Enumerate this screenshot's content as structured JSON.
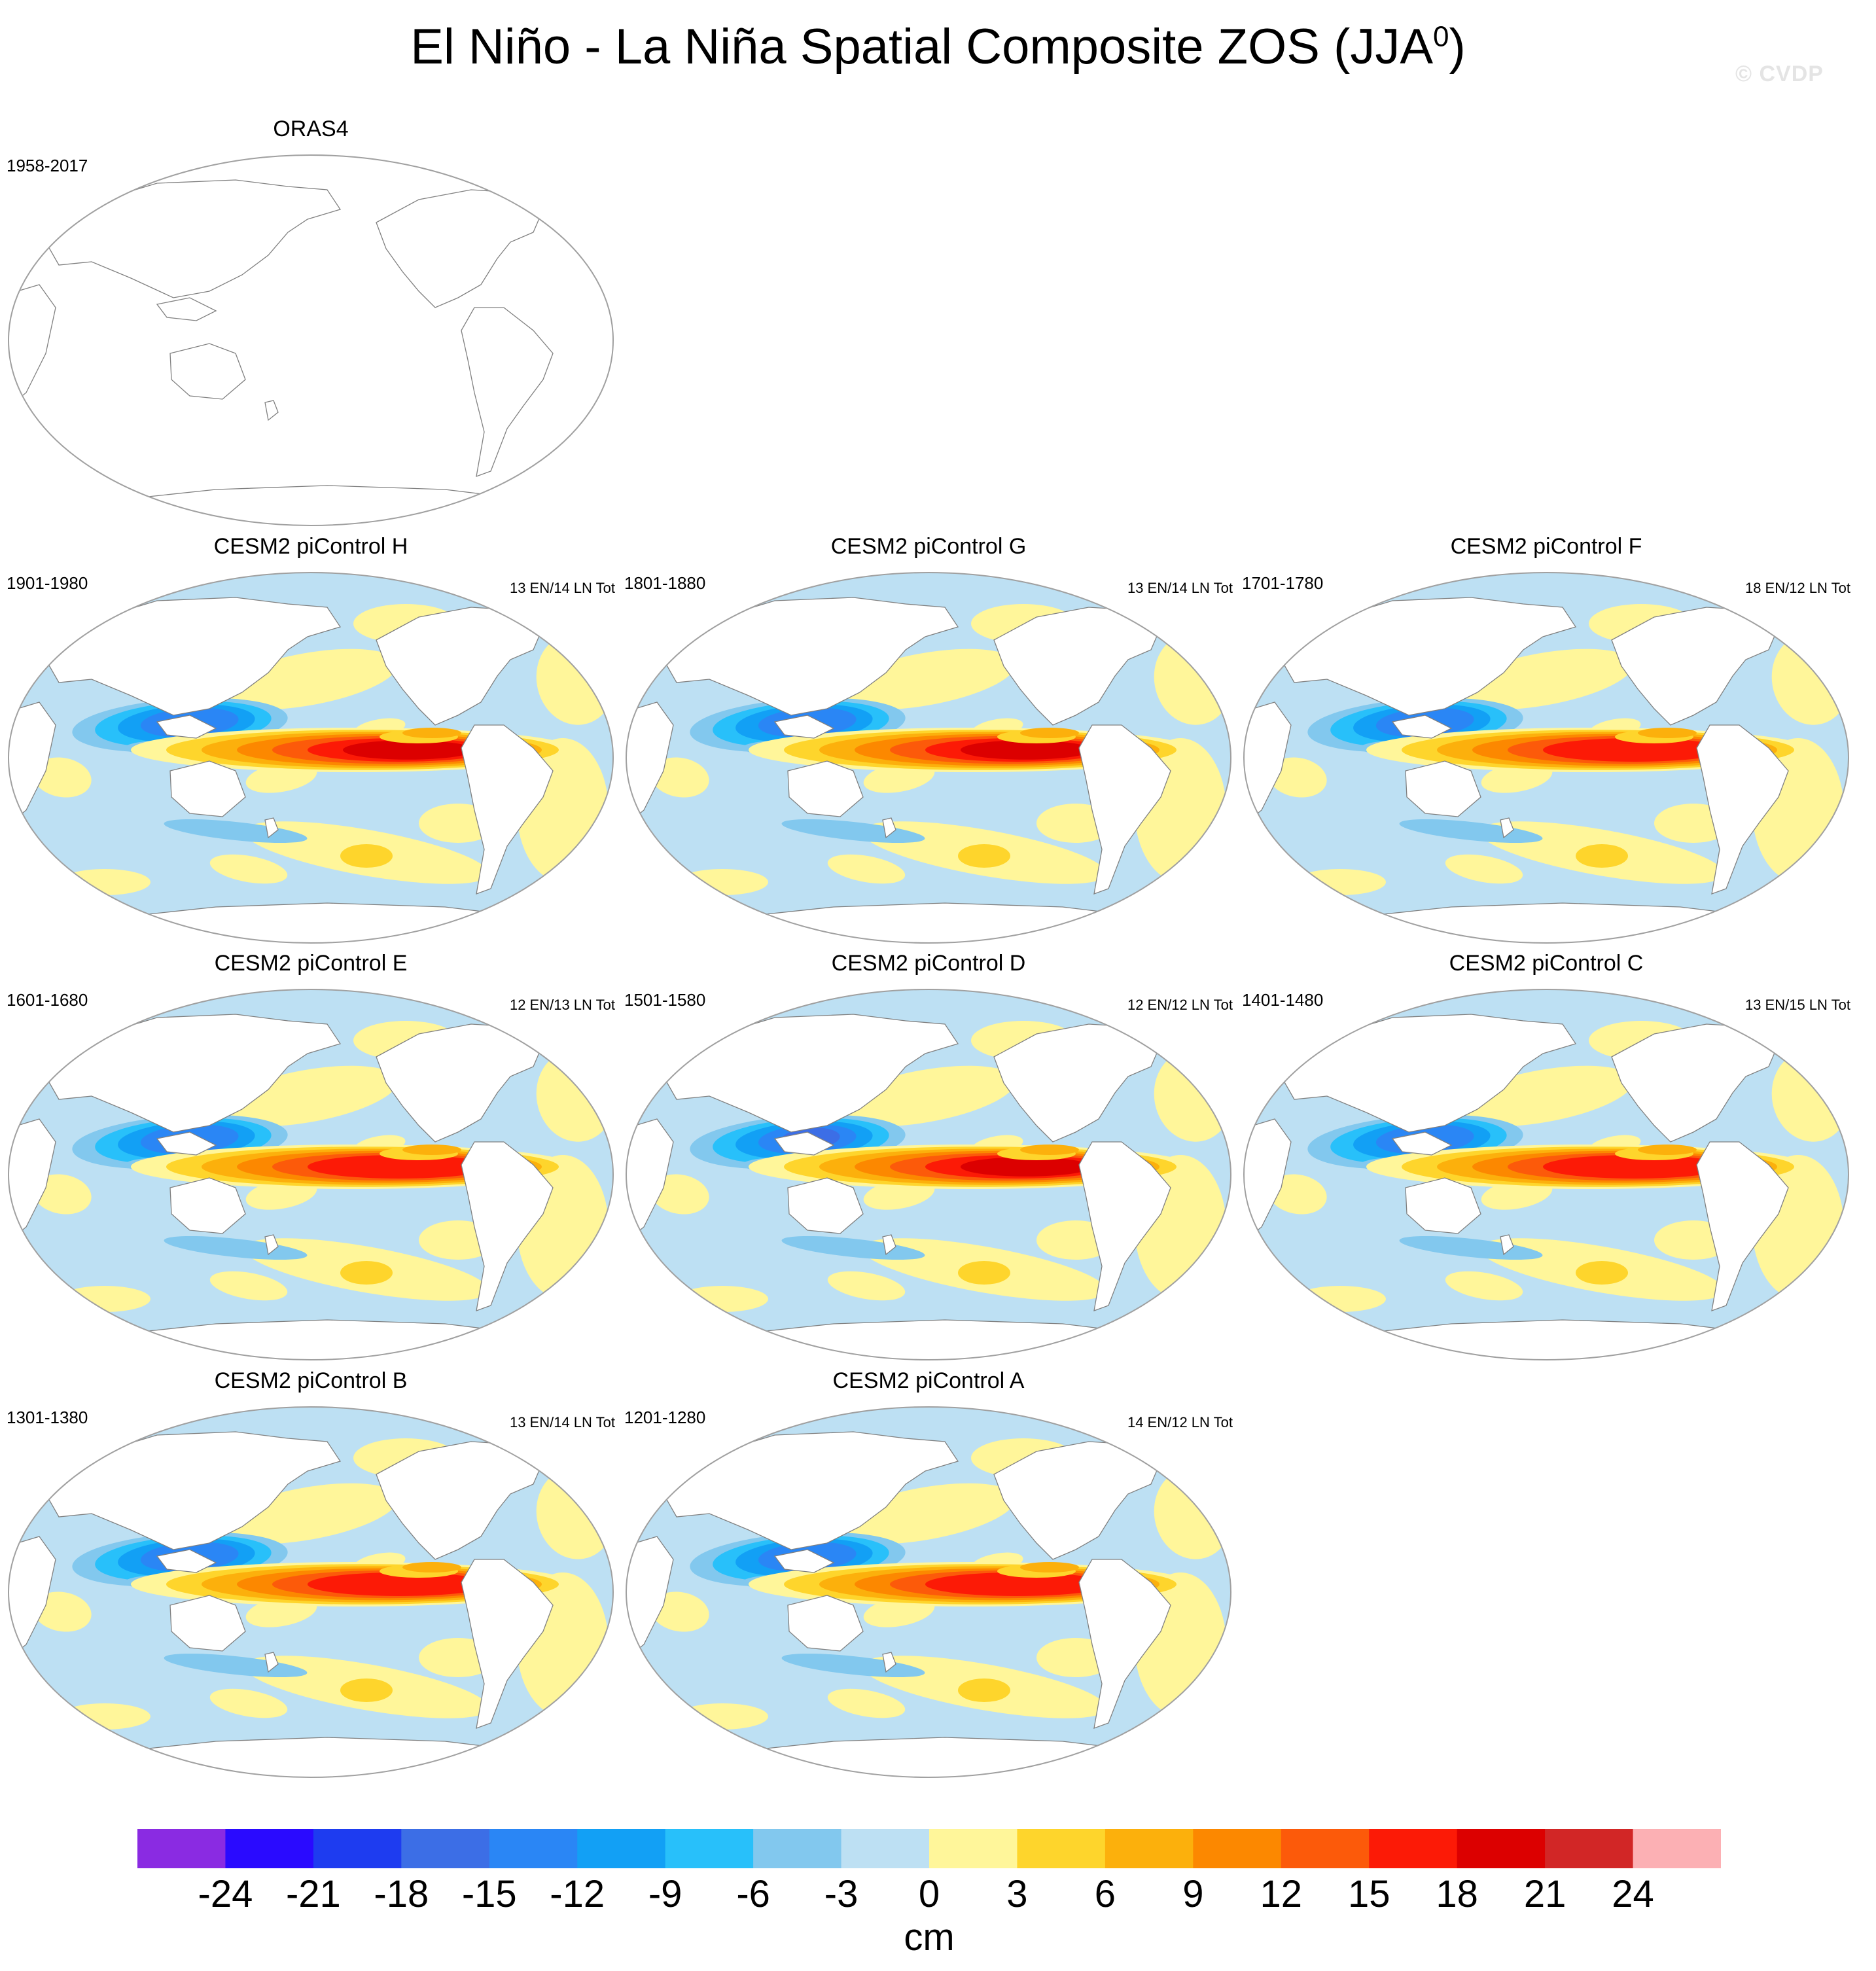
{
  "figure": {
    "title_main": "El Niño - La Niña Spatial Composite ZOS (JJA",
    "title_sup": "0",
    "title_end": ")",
    "watermark": "© CVDP"
  },
  "colors": {
    "map_outline": "#a0a0a0",
    "coastline": "#808080",
    "land": "#ffffff"
  },
  "chart_data": {
    "type": "heatmap",
    "units": "cm",
    "levels": [
      -24,
      -21,
      -18,
      -15,
      -12,
      -9,
      -6,
      -3,
      0,
      3,
      6,
      9,
      12,
      15,
      18,
      21,
      24
    ],
    "tick_labels": [
      "-24",
      "-21",
      "-18",
      "-15",
      "-12",
      "-9",
      "-6",
      "-3",
      "0",
      "3",
      "6",
      "9",
      "12",
      "15",
      "18",
      "21",
      "24"
    ],
    "palette": [
      "#8a2be2",
      "#2a0aff",
      "#1e3cf0",
      "#3c6ee6",
      "#2a86f5",
      "#12a0f5",
      "#28c0fa",
      "#82c8ee",
      "#bde0f3",
      "#fff69a",
      "#fed52c",
      "#fcb00c",
      "#fc8800",
      "#fc5a0a",
      "#fc1a06",
      "#dc0000",
      "#d22626",
      "#fcb0b4"
    ],
    "panels": [
      {
        "name": "ORAS4",
        "years": "1958-2017",
        "count": "",
        "has_data": false
      },
      {
        "name": "CESM2 piControl H",
        "years": "1901-1980",
        "count": "13 EN/14 LN Tot",
        "has_data": true,
        "peak_east_pacific": 21,
        "min_west_pacific": -15
      },
      {
        "name": "CESM2 piControl G",
        "years": "1801-1880",
        "count": "13 EN/14 LN Tot",
        "has_data": true,
        "peak_east_pacific": 21,
        "min_west_pacific": -15
      },
      {
        "name": "CESM2 piControl F",
        "years": "1701-1780",
        "count": "18 EN/12 LN Tot",
        "has_data": true,
        "peak_east_pacific": 18,
        "min_west_pacific": -15
      },
      {
        "name": "CESM2 piControl E",
        "years": "1601-1680",
        "count": "12 EN/13 LN Tot",
        "has_data": true,
        "peak_east_pacific": 18,
        "min_west_pacific": -15
      },
      {
        "name": "CESM2 piControl D",
        "years": "1501-1580",
        "count": "12 EN/12 LN Tot",
        "has_data": true,
        "peak_east_pacific": 21,
        "min_west_pacific": -18
      },
      {
        "name": "CESM2 piControl C",
        "years": "1401-1480",
        "count": "13 EN/15 LN Tot",
        "has_data": true,
        "peak_east_pacific": 18,
        "min_west_pacific": -15
      },
      {
        "name": "CESM2 piControl B",
        "years": "1301-1380",
        "count": "13 EN/14 LN Tot",
        "has_data": true,
        "peak_east_pacific": 18,
        "min_west_pacific": -15
      },
      {
        "name": "CESM2 piControl A",
        "years": "1201-1280",
        "count": "14 EN/12 LN Tot",
        "has_data": true,
        "peak_east_pacific": 18,
        "min_west_pacific": -15
      }
    ]
  }
}
